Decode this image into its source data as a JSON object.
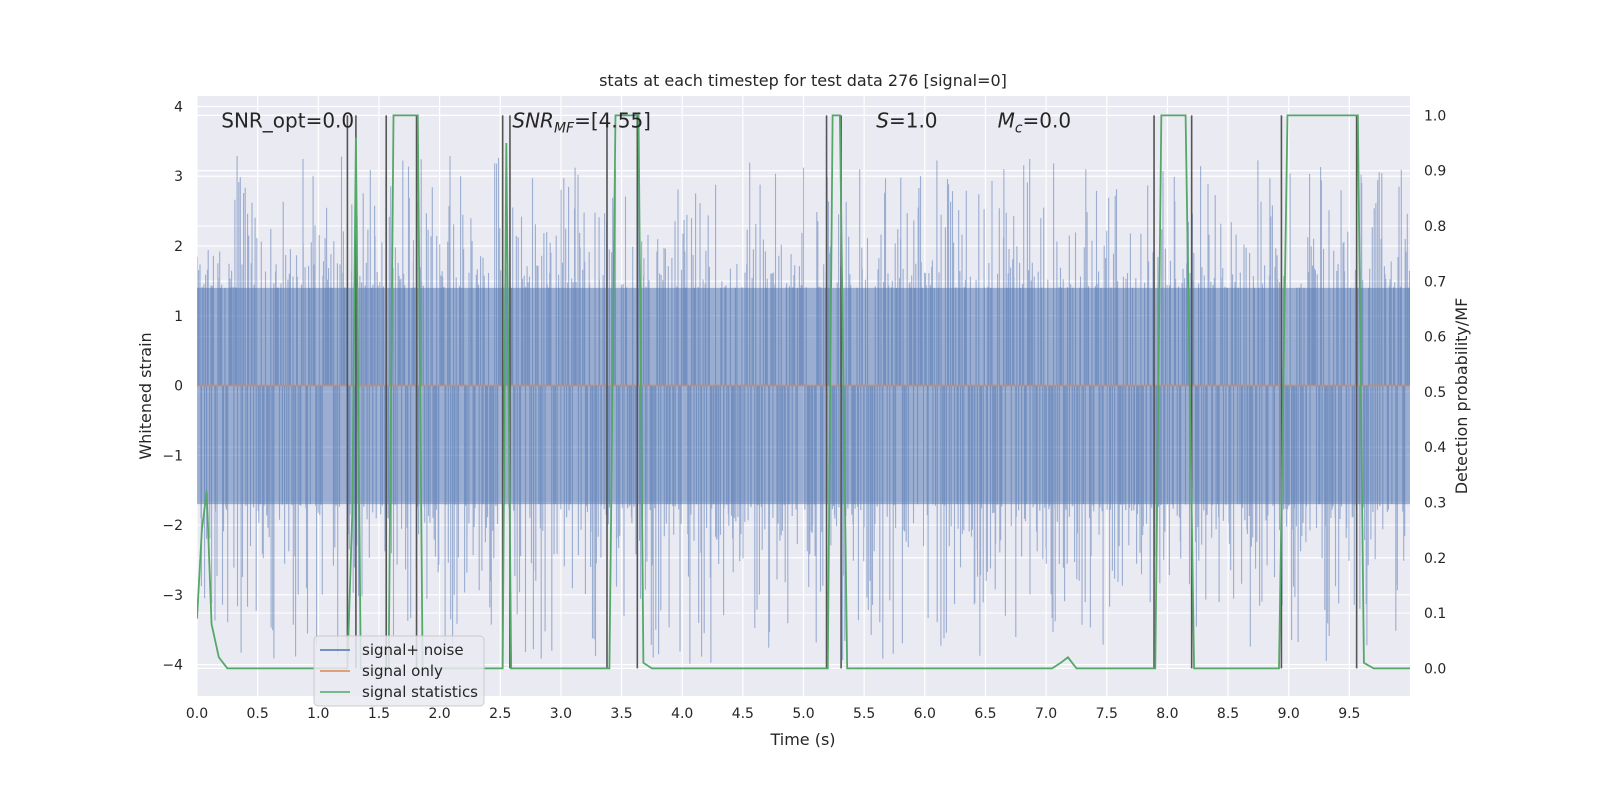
{
  "chart_data": {
    "type": "line",
    "title": "stats at each timestep for test data 276 [signal=0]",
    "xlabel": "Time (s)",
    "ylabel": "Whitened strain",
    "y2label": "Detection probability/MF",
    "xlim": [
      0.0,
      10.0
    ],
    "ylim": [
      -4.45,
      4.15
    ],
    "y2lim": [
      -0.05,
      1.035
    ],
    "x_ticks": [
      0.0,
      0.5,
      1.0,
      1.5,
      2.0,
      2.5,
      3.0,
      3.5,
      4.0,
      4.5,
      5.0,
      5.5,
      6.0,
      6.5,
      7.0,
      7.5,
      8.0,
      8.5,
      9.0,
      9.5
    ],
    "x_tick_labels": [
      "0.0",
      "0.5",
      "1.0",
      "1.5",
      "2.0",
      "2.5",
      "3.0",
      "3.5",
      "4.0",
      "4.5",
      "5.0",
      "5.5",
      "6.0",
      "6.5",
      "7.0",
      "7.5",
      "8.0",
      "8.5",
      "9.0",
      "9.5"
    ],
    "y_ticks": [
      -4,
      -3,
      -2,
      -1,
      0,
      1,
      2,
      3,
      4
    ],
    "y_tick_labels": [
      "−4",
      "−3",
      "−2",
      "−1",
      "0",
      "1",
      "2",
      "3",
      "4"
    ],
    "y2_ticks": [
      0.0,
      0.1,
      0.2,
      0.3,
      0.4,
      0.5,
      0.6,
      0.7,
      0.8,
      0.9,
      1.0
    ],
    "y2_tick_labels": [
      "0.0",
      "0.1",
      "0.2",
      "0.3",
      "0.4",
      "0.5",
      "0.6",
      "0.7",
      "0.8",
      "0.9",
      "1.0"
    ],
    "grid": true,
    "annotations": [
      {
        "text": "SNR_opt=0.0",
        "x": 0.2,
        "y": 3.8
      },
      {
        "text": "SNR_MF=[4.55]",
        "x": 2.6,
        "y": 3.8
      },
      {
        "text": "S=1.0",
        "x": 5.6,
        "y": 3.8
      },
      {
        "text": "M_c=0.0",
        "x": 6.6,
        "y": 3.8
      }
    ],
    "legend": {
      "position": "lower-left",
      "entries": [
        {
          "label": "signal+ noise",
          "color": "#4c72b0"
        },
        {
          "label": "signal only",
          "color": "#dd8452"
        },
        {
          "label": "signal statistics",
          "color": "#55a868"
        }
      ]
    },
    "series": [
      {
        "name": "signal+ noise",
        "axis": "left",
        "style": "dense noise band",
        "color": "#4c72b0",
        "envelope_typical": [
          -1.7,
          1.4
        ],
        "envelope_max": [
          -4.0,
          3.3
        ]
      },
      {
        "name": "signal only",
        "axis": "left",
        "color": "#dd8452",
        "x": [
          0.0,
          10.0
        ],
        "y": [
          0.0,
          0.0
        ]
      },
      {
        "name": "signal statistics",
        "axis": "right",
        "color": "#55a868",
        "x": [
          0.0,
          0.04,
          0.08,
          0.12,
          0.18,
          0.25,
          1.24,
          1.28,
          1.31,
          1.35,
          1.58,
          1.62,
          1.82,
          1.86,
          2.52,
          2.55,
          2.59,
          3.4,
          3.45,
          3.64,
          3.68,
          3.75,
          5.2,
          5.24,
          5.3,
          5.36,
          7.05,
          7.12,
          7.18,
          7.25,
          7.9,
          7.95,
          8.15,
          8.22,
          8.92,
          8.99,
          9.57,
          9.62,
          9.7,
          10.0
        ],
        "y": [
          0.09,
          0.25,
          0.32,
          0.08,
          0.02,
          0.0,
          0.0,
          0.28,
          0.96,
          0.0,
          0.0,
          1.0,
          1.0,
          0.0,
          0.0,
          0.95,
          0.0,
          0.0,
          1.0,
          1.0,
          0.01,
          0.0,
          0.0,
          1.0,
          1.0,
          0.0,
          0.0,
          0.01,
          0.02,
          0.0,
          0.0,
          1.0,
          1.0,
          0.0,
          0.0,
          1.0,
          1.0,
          0.01,
          0.0,
          0.0
        ]
      },
      {
        "name": "",
        "axis": "right",
        "style": "vertical markers",
        "color": "#555555",
        "x": [
          1.24,
          1.31,
          1.56,
          1.81,
          2.52,
          2.58,
          3.38,
          3.63,
          5.19,
          5.31,
          7.89,
          8.2,
          8.94,
          9.56
        ]
      }
    ]
  }
}
